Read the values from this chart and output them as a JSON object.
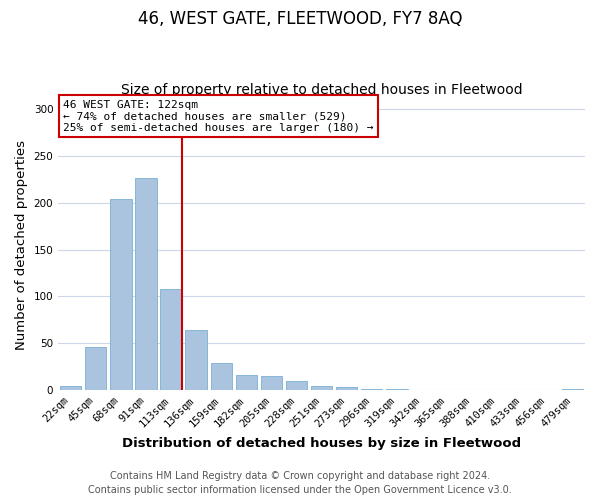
{
  "title": "46, WEST GATE, FLEETWOOD, FY7 8AQ",
  "subtitle": "Size of property relative to detached houses in Fleetwood",
  "xlabel": "Distribution of detached houses by size in Fleetwood",
  "ylabel": "Number of detached properties",
  "bar_labels": [
    "22sqm",
    "45sqm",
    "68sqm",
    "91sqm",
    "113sqm",
    "136sqm",
    "159sqm",
    "182sqm",
    "205sqm",
    "228sqm",
    "251sqm",
    "273sqm",
    "296sqm",
    "319sqm",
    "342sqm",
    "365sqm",
    "388sqm",
    "410sqm",
    "433sqm",
    "456sqm",
    "479sqm"
  ],
  "bar_values": [
    5,
    46,
    204,
    226,
    108,
    64,
    29,
    16,
    15,
    10,
    5,
    3,
    1,
    1,
    0,
    0,
    0,
    0,
    0,
    0,
    1
  ],
  "bar_color": "#aac4e0",
  "bar_edge_color": "#7aafd4",
  "highlight_line_index": 4,
  "highlight_line_color": "#cc0000",
  "annotation_text": "46 WEST GATE: 122sqm\n← 74% of detached houses are smaller (529)\n25% of semi-detached houses are larger (180) →",
  "annotation_box_color": "#ffffff",
  "annotation_box_edge_color": "#cc0000",
  "ylim": [
    0,
    310
  ],
  "yticks": [
    0,
    50,
    100,
    150,
    200,
    250,
    300
  ],
  "footer_line1": "Contains HM Land Registry data © Crown copyright and database right 2024.",
  "footer_line2": "Contains public sector information licensed under the Open Government Licence v3.0.",
  "background_color": "#ffffff",
  "grid_color": "#ccd8ea",
  "title_fontsize": 12,
  "subtitle_fontsize": 10,
  "axis_label_fontsize": 9.5,
  "tick_fontsize": 7.5,
  "annotation_fontsize": 8,
  "footer_fontsize": 7
}
